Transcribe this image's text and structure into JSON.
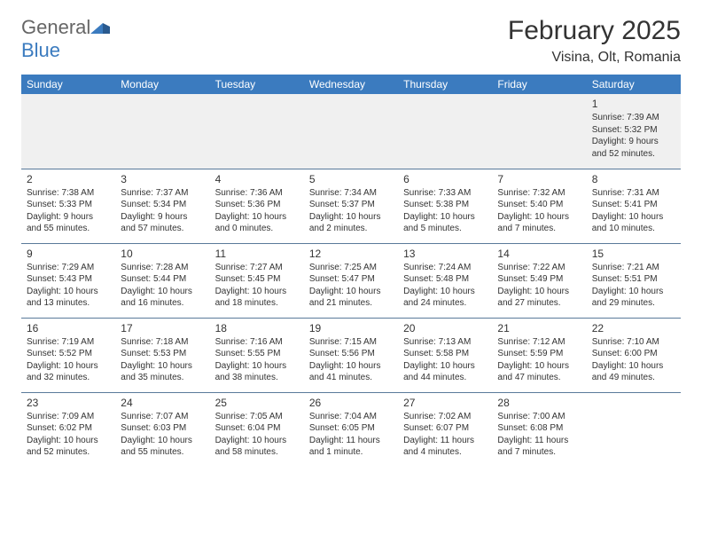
{
  "logo": {
    "text1": "General",
    "text2": "Blue"
  },
  "title": "February 2025",
  "location": "Visina, Olt, Romania",
  "colors": {
    "header_bg": "#3b7bbf",
    "header_text": "#ffffff",
    "row_alt_bg": "#f0f0f0",
    "border": "#5a7a9a",
    "text": "#333333"
  },
  "day_headers": [
    "Sunday",
    "Monday",
    "Tuesday",
    "Wednesday",
    "Thursday",
    "Friday",
    "Saturday"
  ],
  "weeks": [
    [
      null,
      null,
      null,
      null,
      null,
      null,
      {
        "n": "1",
        "sr": "7:39 AM",
        "ss": "5:32 PM",
        "dh": "9",
        "dm": "52"
      }
    ],
    [
      {
        "n": "2",
        "sr": "7:38 AM",
        "ss": "5:33 PM",
        "dh": "9",
        "dm": "55"
      },
      {
        "n": "3",
        "sr": "7:37 AM",
        "ss": "5:34 PM",
        "dh": "9",
        "dm": "57"
      },
      {
        "n": "4",
        "sr": "7:36 AM",
        "ss": "5:36 PM",
        "dh": "10",
        "dm": "0"
      },
      {
        "n": "5",
        "sr": "7:34 AM",
        "ss": "5:37 PM",
        "dh": "10",
        "dm": "2"
      },
      {
        "n": "6",
        "sr": "7:33 AM",
        "ss": "5:38 PM",
        "dh": "10",
        "dm": "5"
      },
      {
        "n": "7",
        "sr": "7:32 AM",
        "ss": "5:40 PM",
        "dh": "10",
        "dm": "7"
      },
      {
        "n": "8",
        "sr": "7:31 AM",
        "ss": "5:41 PM",
        "dh": "10",
        "dm": "10"
      }
    ],
    [
      {
        "n": "9",
        "sr": "7:29 AM",
        "ss": "5:43 PM",
        "dh": "10",
        "dm": "13"
      },
      {
        "n": "10",
        "sr": "7:28 AM",
        "ss": "5:44 PM",
        "dh": "10",
        "dm": "16"
      },
      {
        "n": "11",
        "sr": "7:27 AM",
        "ss": "5:45 PM",
        "dh": "10",
        "dm": "18"
      },
      {
        "n": "12",
        "sr": "7:25 AM",
        "ss": "5:47 PM",
        "dh": "10",
        "dm": "21"
      },
      {
        "n": "13",
        "sr": "7:24 AM",
        "ss": "5:48 PM",
        "dh": "10",
        "dm": "24"
      },
      {
        "n": "14",
        "sr": "7:22 AM",
        "ss": "5:49 PM",
        "dh": "10",
        "dm": "27"
      },
      {
        "n": "15",
        "sr": "7:21 AM",
        "ss": "5:51 PM",
        "dh": "10",
        "dm": "29"
      }
    ],
    [
      {
        "n": "16",
        "sr": "7:19 AM",
        "ss": "5:52 PM",
        "dh": "10",
        "dm": "32"
      },
      {
        "n": "17",
        "sr": "7:18 AM",
        "ss": "5:53 PM",
        "dh": "10",
        "dm": "35"
      },
      {
        "n": "18",
        "sr": "7:16 AM",
        "ss": "5:55 PM",
        "dh": "10",
        "dm": "38"
      },
      {
        "n": "19",
        "sr": "7:15 AM",
        "ss": "5:56 PM",
        "dh": "10",
        "dm": "41"
      },
      {
        "n": "20",
        "sr": "7:13 AM",
        "ss": "5:58 PM",
        "dh": "10",
        "dm": "44"
      },
      {
        "n": "21",
        "sr": "7:12 AM",
        "ss": "5:59 PM",
        "dh": "10",
        "dm": "47"
      },
      {
        "n": "22",
        "sr": "7:10 AM",
        "ss": "6:00 PM",
        "dh": "10",
        "dm": "49"
      }
    ],
    [
      {
        "n": "23",
        "sr": "7:09 AM",
        "ss": "6:02 PM",
        "dh": "10",
        "dm": "52"
      },
      {
        "n": "24",
        "sr": "7:07 AM",
        "ss": "6:03 PM",
        "dh": "10",
        "dm": "55"
      },
      {
        "n": "25",
        "sr": "7:05 AM",
        "ss": "6:04 PM",
        "dh": "10",
        "dm": "58"
      },
      {
        "n": "26",
        "sr": "7:04 AM",
        "ss": "6:05 PM",
        "dh": "11",
        "dm": "1"
      },
      {
        "n": "27",
        "sr": "7:02 AM",
        "ss": "6:07 PM",
        "dh": "11",
        "dm": "4"
      },
      {
        "n": "28",
        "sr": "7:00 AM",
        "ss": "6:08 PM",
        "dh": "11",
        "dm": "7"
      },
      null
    ]
  ]
}
